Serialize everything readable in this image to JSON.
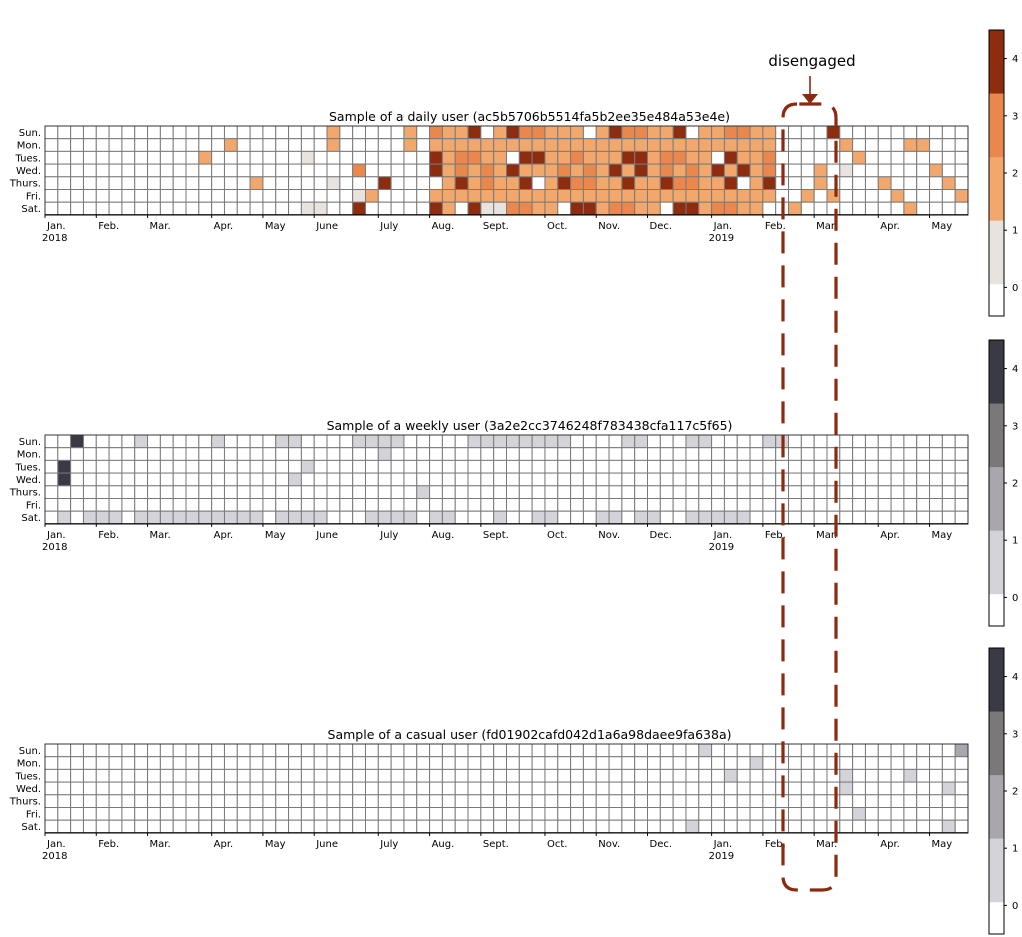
{
  "annotation": {
    "label": "disengaged",
    "color": "#8a2a0e"
  },
  "chart_data": [
    {
      "type": "heatmap",
      "title": "Sample of a  daily  user (ac5b5706b5514fa5b2ee35e484a53e4e)",
      "palette": "orange",
      "y_labels": [
        "Sun.",
        "Mon.",
        "Tues.",
        "Wed.",
        "Thurs.",
        "Fri.",
        "Sat."
      ],
      "x_labels": [
        "Jan.",
        "Feb.",
        "Mar.",
        "Apr.",
        "May",
        "June",
        "July",
        "Aug.",
        "Sept.",
        "Oct.",
        "Nov.",
        "Dec.",
        "Jan.",
        "Feb.",
        "Mar.",
        "Apr.",
        "May"
      ],
      "x_years": [
        "2018",
        "2019"
      ],
      "weeks": 72,
      "zlim": [
        0,
        4
      ],
      "nonzero_cells": [
        [
          28,
          0,
          2
        ],
        [
          28,
          1,
          2
        ],
        [
          31,
          0,
          2
        ],
        [
          30,
          5,
          2
        ],
        [
          30,
          6,
          4
        ],
        [
          26,
          4,
          4
        ],
        [
          24,
          3,
          3
        ],
        [
          22,
          0,
          2
        ],
        [
          22,
          1,
          2
        ],
        [
          21,
          6,
          1
        ],
        [
          20,
          6,
          1
        ],
        [
          16,
          4,
          2
        ],
        [
          14,
          1,
          2
        ],
        [
          12,
          2,
          2
        ],
        [
          24,
          6,
          4
        ],
        [
          25,
          5,
          2
        ],
        [
          24,
          5,
          1
        ],
        [
          22,
          4,
          1
        ],
        [
          20,
          2,
          1
        ],
        [
          33,
          4,
          2
        ],
        [
          34,
          5,
          2
        ],
        [
          35,
          5,
          2
        ],
        [
          34,
          6,
          1
        ],
        [
          35,
          6,
          1
        ],
        [
          38,
          3,
          2
        ],
        [
          39,
          2,
          2
        ],
        [
          40,
          2,
          2
        ],
        [
          38,
          1,
          2
        ],
        [
          39,
          0,
          2
        ],
        [
          41,
          0,
          2
        ],
        [
          41,
          1,
          2
        ],
        [
          44,
          2,
          2
        ],
        [
          45,
          3,
          2
        ],
        [
          46,
          4,
          2
        ],
        [
          50,
          1,
          2
        ],
        [
          51,
          0,
          2
        ],
        [
          52,
          0,
          2
        ],
        [
          53,
          1,
          2
        ],
        [
          54,
          2,
          2
        ],
        [
          55,
          3,
          2
        ],
        [
          61,
          0,
          4
        ],
        [
          62,
          1,
          2
        ],
        [
          63,
          2,
          2
        ],
        [
          60,
          3,
          2
        ],
        [
          60,
          4,
          2
        ],
        [
          59,
          5,
          2
        ],
        [
          58,
          6,
          2
        ],
        [
          61,
          5,
          2
        ],
        [
          67,
          1,
          2
        ],
        [
          68,
          1,
          2
        ],
        [
          62,
          3,
          1
        ],
        [
          65,
          4,
          2
        ],
        [
          66,
          5,
          2
        ],
        [
          67,
          6,
          2
        ],
        [
          69,
          3,
          2
        ],
        [
          70,
          4,
          2
        ],
        [
          71,
          5,
          2
        ]
      ],
      "active_range": {
        "weeks": [
          30,
          56
        ],
        "level_mix": [
          2,
          2,
          3,
          4,
          4,
          2,
          0,
          3
        ]
      }
    },
    {
      "type": "heatmap",
      "title": "Sample of a weekly user (3a2e2cc3746248f783438cfa117c5f65)",
      "palette": "gray",
      "y_labels": [
        "Sun.",
        "Mon.",
        "Tues.",
        "Wed.",
        "Thurs.",
        "Fri.",
        "Sat."
      ],
      "x_labels": [
        "Jan.",
        "Feb.",
        "Mar.",
        "Apr.",
        "May",
        "June",
        "July",
        "Aug.",
        "Sept.",
        "Oct.",
        "Nov.",
        "Dec.",
        "Jan.",
        "Feb.",
        "Mar.",
        "Apr.",
        "May"
      ],
      "x_years": [
        "2018",
        "2019"
      ],
      "weeks": 72,
      "zlim": [
        0,
        4
      ],
      "nonzero_cells": [
        [
          2,
          0,
          4
        ],
        [
          1,
          2,
          4
        ],
        [
          1,
          3,
          4
        ],
        [
          1,
          6,
          1
        ],
        [
          7,
          0,
          1
        ],
        [
          13,
          0,
          1
        ],
        [
          18,
          0,
          1
        ],
        [
          19,
          0,
          1
        ],
        [
          24,
          0,
          1
        ],
        [
          25,
          0,
          1
        ],
        [
          26,
          0,
          1
        ],
        [
          27,
          0,
          1
        ],
        [
          33,
          0,
          1
        ],
        [
          34,
          0,
          1
        ],
        [
          35,
          0,
          1
        ],
        [
          36,
          0,
          1
        ],
        [
          37,
          0,
          1
        ],
        [
          38,
          0,
          1
        ],
        [
          39,
          0,
          1
        ],
        [
          40,
          0,
          1
        ],
        [
          45,
          0,
          1
        ],
        [
          46,
          0,
          1
        ],
        [
          50,
          0,
          1
        ],
        [
          51,
          0,
          1
        ],
        [
          56,
          0,
          1
        ],
        [
          57,
          0,
          1
        ],
        [
          26,
          1,
          1
        ],
        [
          20,
          2,
          1
        ],
        [
          19,
          3,
          1
        ],
        [
          29,
          4,
          1
        ],
        [
          3,
          6,
          1
        ],
        [
          4,
          6,
          1
        ],
        [
          5,
          6,
          1
        ],
        [
          7,
          6,
          1
        ],
        [
          8,
          6,
          1
        ],
        [
          9,
          6,
          1
        ],
        [
          10,
          6,
          1
        ],
        [
          11,
          6,
          1
        ],
        [
          12,
          6,
          1
        ],
        [
          13,
          6,
          1
        ],
        [
          14,
          6,
          1
        ],
        [
          15,
          6,
          1
        ],
        [
          16,
          6,
          1
        ],
        [
          18,
          6,
          1
        ],
        [
          19,
          6,
          1
        ],
        [
          20,
          6,
          1
        ],
        [
          21,
          6,
          1
        ],
        [
          25,
          6,
          1
        ],
        [
          26,
          6,
          1
        ],
        [
          27,
          6,
          1
        ],
        [
          28,
          6,
          1
        ],
        [
          30,
          6,
          1
        ],
        [
          31,
          6,
          1
        ],
        [
          35,
          6,
          1
        ],
        [
          38,
          6,
          1
        ],
        [
          39,
          6,
          1
        ],
        [
          43,
          6,
          1
        ],
        [
          44,
          6,
          1
        ],
        [
          46,
          6,
          1
        ],
        [
          47,
          6,
          1
        ],
        [
          50,
          6,
          1
        ],
        [
          51,
          6,
          1
        ],
        [
          52,
          6,
          1
        ],
        [
          53,
          6,
          1
        ],
        [
          54,
          6,
          1
        ]
      ]
    },
    {
      "type": "heatmap",
      "title": "Sample of a  casual  user (fd01902cafd042d1a6a98daee9fa638a)",
      "palette": "gray",
      "y_labels": [
        "Sun.",
        "Mon.",
        "Tues.",
        "Wed.",
        "Thurs.",
        "Fri.",
        "Sat."
      ],
      "x_labels": [
        "Jan.",
        "Feb.",
        "Mar.",
        "Apr.",
        "May",
        "June",
        "July",
        "Aug.",
        "Sept.",
        "Oct.",
        "Nov.",
        "Dec.",
        "Jan.",
        "Feb.",
        "Mar.",
        "Apr.",
        "May"
      ],
      "x_years": [
        "2018",
        "2019"
      ],
      "weeks": 72,
      "zlim": [
        0,
        4
      ],
      "nonzero_cells": [
        [
          51,
          0,
          1
        ],
        [
          71,
          0,
          2
        ],
        [
          55,
          1,
          1
        ],
        [
          53,
          2,
          1
        ],
        [
          62,
          2,
          1
        ],
        [
          67,
          2,
          1
        ],
        [
          62,
          3,
          1
        ],
        [
          70,
          3,
          1
        ],
        [
          63,
          5,
          1
        ],
        [
          50,
          6,
          1
        ],
        [
          70,
          6,
          1
        ]
      ]
    }
  ],
  "colorbars": [
    {
      "palette": "orange",
      "ticks": [
        "0",
        "1",
        "2",
        "3",
        "4"
      ]
    },
    {
      "palette": "gray",
      "ticks": [
        "0",
        "1",
        "2",
        "3",
        "4"
      ]
    },
    {
      "palette": "gray",
      "ticks": [
        "0",
        "1",
        "2",
        "3",
        "4"
      ]
    }
  ],
  "palettes": {
    "orange": [
      "#ffffff",
      "#e9e3df",
      "#f2a76d",
      "#e9874d",
      "#8e2c10"
    ],
    "gray": [
      "#ffffff",
      "#d4d3da",
      "#a9a6ae",
      "#7a7878",
      "#3a3a44"
    ]
  }
}
